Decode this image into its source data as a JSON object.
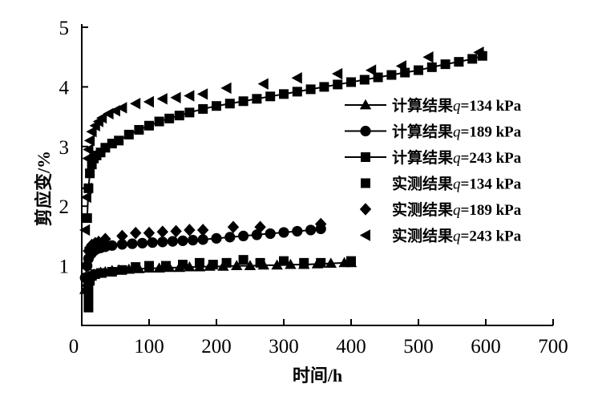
{
  "chart_data": {
    "type": "scatter",
    "title": "",
    "xlabel": "时间/h",
    "ylabel": "剪应变/%",
    "xlim": [
      0,
      700
    ],
    "ylim": [
      0,
      5
    ],
    "xticks": [
      "0",
      "100",
      "200",
      "300",
      "400",
      "500",
      "600",
      "700"
    ],
    "yticks": [
      "1",
      "2",
      "3",
      "4",
      "5"
    ],
    "grid": false,
    "legend_position": "right",
    "series": [
      {
        "name": "计算结果q=134 kPa",
        "label": {
          "prefix": "计算结果",
          "var": "q",
          "suffix": "=134 kPa"
        },
        "marker": "triangle-up",
        "line": true,
        "x": [
          5,
          8,
          10,
          14,
          18,
          22,
          28,
          35,
          45,
          55,
          70,
          85,
          100,
          115,
          130,
          145,
          160,
          175,
          190,
          210,
          230,
          250,
          270,
          290,
          310,
          330,
          350,
          370,
          390,
          400
        ],
        "y": [
          0.6,
          0.72,
          0.8,
          0.84,
          0.86,
          0.87,
          0.89,
          0.9,
          0.92,
          0.93,
          0.94,
          0.95,
          0.96,
          0.96,
          0.97,
          0.97,
          0.98,
          0.98,
          0.99,
          0.99,
          1.0,
          1.0,
          1.01,
          1.01,
          1.02,
          1.02,
          1.03,
          1.04,
          1.05,
          1.05
        ]
      },
      {
        "name": "计算结果q=189 kPa",
        "label": {
          "prefix": "计算结果",
          "var": "q",
          "suffix": "=189 kPa"
        },
        "marker": "circle",
        "line": true,
        "x": [
          5,
          8,
          10,
          14,
          18,
          22,
          28,
          35,
          45,
          60,
          75,
          90,
          105,
          120,
          135,
          150,
          165,
          180,
          200,
          220,
          240,
          260,
          280,
          300,
          320,
          340,
          355
        ],
        "y": [
          0.8,
          1.0,
          1.12,
          1.2,
          1.25,
          1.28,
          1.3,
          1.32,
          1.34,
          1.36,
          1.37,
          1.38,
          1.39,
          1.4,
          1.41,
          1.42,
          1.43,
          1.44,
          1.46,
          1.48,
          1.5,
          1.52,
          1.54,
          1.56,
          1.58,
          1.6,
          1.62
        ]
      },
      {
        "name": "计算结果q=243 kPa",
        "label": {
          "prefix": "计算结果",
          "var": "q",
          "suffix": "=243 kPa"
        },
        "marker": "square",
        "line": true,
        "x": [
          8,
          10,
          12,
          15,
          18,
          22,
          28,
          35,
          45,
          55,
          70,
          85,
          100,
          115,
          130,
          145,
          160,
          180,
          200,
          220,
          240,
          260,
          280,
          300,
          320,
          340,
          360,
          380,
          400,
          420,
          440,
          460,
          480,
          500,
          520,
          540,
          560,
          580,
          595
        ],
        "y": [
          1.8,
          2.3,
          2.55,
          2.7,
          2.8,
          2.85,
          2.9,
          2.98,
          3.05,
          3.1,
          3.2,
          3.28,
          3.35,
          3.42,
          3.47,
          3.52,
          3.57,
          3.63,
          3.68,
          3.72,
          3.76,
          3.8,
          3.84,
          3.88,
          3.92,
          3.96,
          4.0,
          4.04,
          4.08,
          4.12,
          4.16,
          4.2,
          4.24,
          4.28,
          4.33,
          4.38,
          4.42,
          4.47,
          4.52
        ]
      },
      {
        "name": "实测结果q=134 kPa",
        "label": {
          "prefix": "实测结果",
          "var": "q",
          "suffix": "=134 kPa"
        },
        "marker": "square",
        "line": false,
        "x": [
          10,
          10,
          10,
          12,
          15,
          20,
          30,
          45,
          60,
          80,
          100,
          125,
          150,
          175,
          195,
          215,
          240,
          265,
          300,
          330,
          355,
          400
        ],
        "y": [
          0.3,
          0.45,
          0.6,
          0.75,
          0.83,
          0.86,
          0.88,
          0.9,
          0.93,
          0.98,
          1.0,
          1.0,
          1.02,
          1.05,
          1.02,
          1.05,
          1.1,
          1.05,
          1.08,
          1.05,
          1.05,
          1.08
        ]
      },
      {
        "name": "实测结果q=189 kPa",
        "label": {
          "prefix": "实测结果",
          "var": "q",
          "suffix": "=189 kPa"
        },
        "marker": "diamond",
        "line": false,
        "x": [
          10,
          12,
          15,
          20,
          25,
          35,
          60,
          80,
          100,
          120,
          140,
          160,
          180,
          225,
          265,
          355
        ],
        "y": [
          1.25,
          1.3,
          1.35,
          1.38,
          1.4,
          1.45,
          1.5,
          1.55,
          1.55,
          1.57,
          1.58,
          1.6,
          1.6,
          1.65,
          1.65,
          1.7
        ]
      },
      {
        "name": "实测结果q=243 kPa",
        "label": {
          "prefix": "实测结果",
          "var": "q",
          "suffix": "=243 kPa"
        },
        "marker": "triangle-left",
        "line": false,
        "x": [
          5,
          7,
          8,
          9,
          10,
          12,
          15,
          20,
          25,
          30,
          40,
          50,
          60,
          80,
          100,
          120,
          140,
          160,
          180,
          215,
          270,
          320,
          380,
          430,
          475,
          515,
          590
        ],
        "y": [
          1.6,
          2.15,
          2.3,
          2.8,
          2.95,
          3.1,
          3.25,
          3.35,
          3.42,
          3.48,
          3.55,
          3.6,
          3.65,
          3.72,
          3.75,
          3.8,
          3.82,
          3.85,
          3.88,
          3.98,
          4.05,
          4.15,
          4.22,
          4.28,
          4.35,
          4.5,
          4.58
        ]
      }
    ]
  }
}
